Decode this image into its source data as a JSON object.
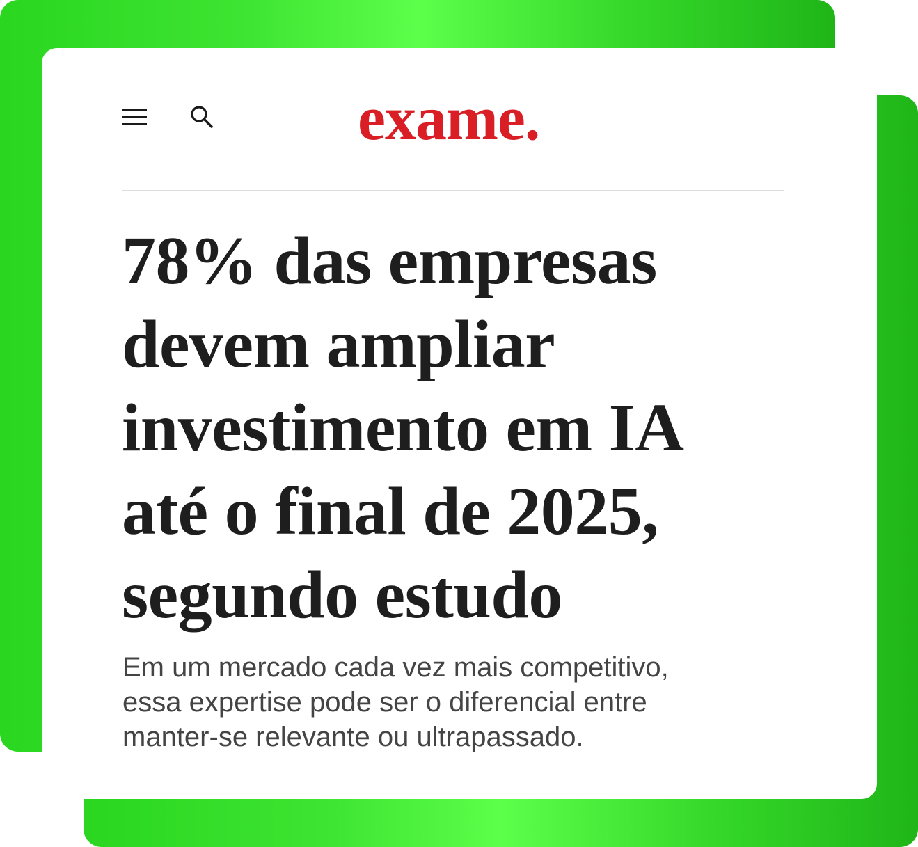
{
  "header": {
    "menu_icon": "hamburger-menu-icon",
    "search_icon": "search-icon",
    "logo": "exame."
  },
  "article": {
    "headline_lines": [
      "78% das empresas",
      "devem ampliar",
      "investimento em IA",
      "até o final de 2025,",
      "segundo estudo"
    ],
    "subtitle_lines": [
      "Em um mercado cada vez mais competitivo,",
      "essa expertise pode ser o diferencial entre",
      "manter-se relevante ou ultrapassado."
    ]
  },
  "colors": {
    "brand_red": "#d91e25",
    "frame_green": "#2ad620",
    "frame_green_light": "#5cff4a"
  }
}
